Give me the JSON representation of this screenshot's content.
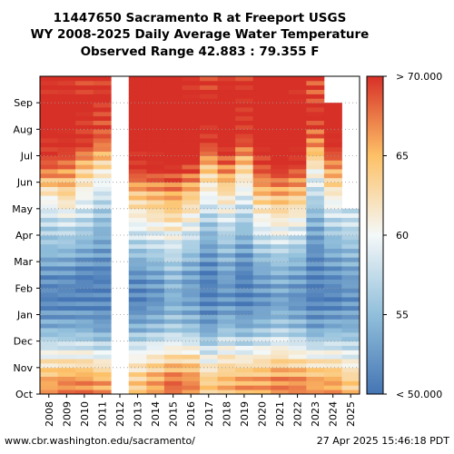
{
  "header": {
    "title_line1": "11447650 Sacramento R at Freeport USGS",
    "title_line2": "WY 2008-2025 Daily Average Water Temperature",
    "title_line3": "Observed Range 42.883 : 79.355 F"
  },
  "footer": {
    "source": "www.cbr.washington.edu/sacramento/",
    "timestamp": "27 Apr 2025 15:46:18 PDT"
  },
  "chart_data": {
    "type": "heatmap",
    "title": "11447650 Sacramento R at Freeport USGS",
    "x": [
      "2008",
      "2009",
      "2010",
      "2011",
      "2012",
      "2013",
      "2014",
      "2015",
      "2016",
      "2017",
      "2018",
      "2019",
      "2020",
      "2021",
      "2022",
      "2023",
      "2024",
      "2025"
    ],
    "y_months": [
      "Oct",
      "Nov",
      "Dec",
      "Jan",
      "Feb",
      "Mar",
      "Apr",
      "May",
      "Jun",
      "Jul",
      "Aug",
      "Sep"
    ],
    "value_unit": "F",
    "color_range": [
      50,
      70
    ],
    "colorbar_ticks": [
      {
        "value": 70,
        "label": "> 70.000"
      },
      {
        "value": 65,
        "label": "65"
      },
      {
        "value": 60,
        "label": "60"
      },
      {
        "value": 55,
        "label": "55"
      },
      {
        "value": 50,
        "label": "< 50.000"
      }
    ],
    "monthly_values": {
      "2008": [
        66,
        60,
        54,
        51,
        52,
        55,
        57,
        61,
        68,
        71,
        72,
        71
      ],
      "2009": [
        67,
        60,
        54,
        51,
        52,
        55,
        58,
        63,
        67,
        71,
        72,
        71
      ],
      "2010": [
        67,
        60,
        54,
        51,
        51,
        54,
        57,
        60,
        64,
        70,
        71,
        70
      ],
      "2011": [
        66,
        59,
        53,
        51,
        51,
        53,
        55,
        58,
        62,
        68,
        70,
        70
      ],
      "2012": [
        null,
        null,
        null,
        null,
        null,
        null,
        null,
        null,
        null,
        null,
        null,
        null
      ],
      "2013": [
        64,
        60,
        54,
        51,
        52,
        56,
        60,
        64,
        70,
        72,
        72,
        71
      ],
      "2014": [
        66,
        61,
        55,
        52,
        53,
        57,
        61,
        65,
        70,
        72,
        73,
        72
      ],
      "2015": [
        68,
        62,
        56,
        54,
        55,
        58,
        62,
        66,
        70,
        72,
        72,
        72
      ],
      "2016": [
        67,
        62,
        55,
        53,
        53,
        56,
        60,
        64,
        69,
        72,
        72,
        71
      ],
      "2017": [
        64,
        59,
        53,
        51,
        51,
        53,
        56,
        60,
        64,
        70,
        72,
        70
      ],
      "2018": [
        65,
        61,
        55,
        52,
        53,
        55,
        58,
        62,
        67,
        71,
        72,
        71
      ],
      "2019": [
        66,
        60,
        54,
        51,
        51,
        53,
        56,
        59,
        63,
        69,
        71,
        70
      ],
      "2020": [
        66,
        61,
        55,
        52,
        53,
        56,
        60,
        64,
        69,
        72,
        72,
        71
      ],
      "2021": [
        67,
        62,
        56,
        53,
        54,
        57,
        61,
        65,
        70,
        73,
        73,
        72
      ],
      "2022": [
        67,
        61,
        55,
        52,
        53,
        56,
        60,
        64,
        69,
        72,
        72,
        71
      ],
      "2023": [
        66,
        60,
        53,
        51,
        51,
        52,
        54,
        57,
        61,
        67,
        70,
        69
      ],
      "2024": [
        66,
        60,
        54,
        51,
        52,
        54,
        57,
        61,
        66,
        71,
        72,
        null
      ],
      "2025": [
        64,
        59,
        54,
        52,
        53,
        55,
        58,
        null,
        null,
        null,
        null,
        null
      ]
    },
    "grid": true,
    "legend": "colorbar-right"
  }
}
